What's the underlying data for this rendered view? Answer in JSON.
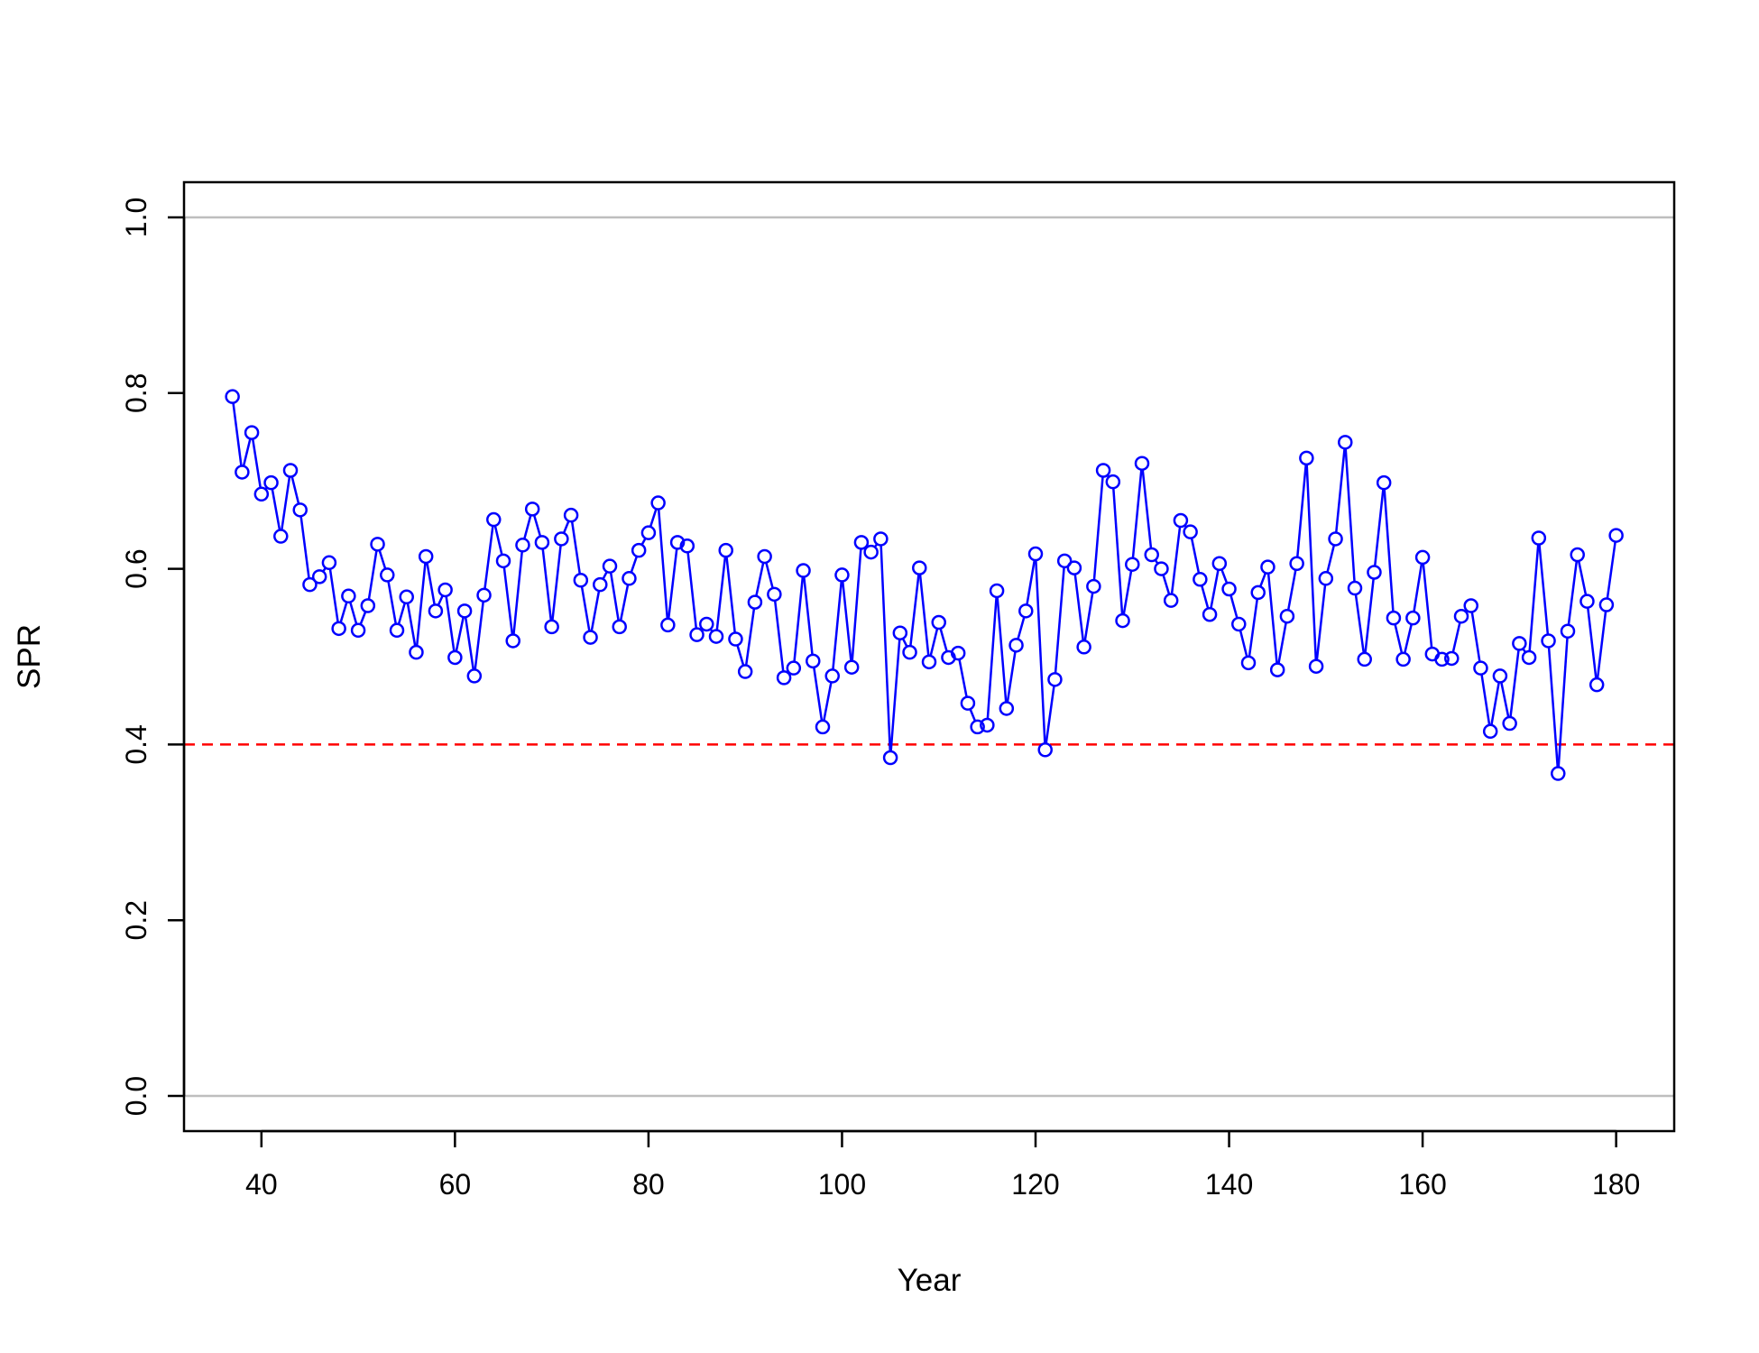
{
  "chart_data": {
    "type": "line",
    "title": "",
    "xlabel": "Year",
    "ylabel": "SPR",
    "xlim": [
      32,
      186
    ],
    "ylim": [
      -0.04,
      1.04
    ],
    "x_ticks": [
      40,
      60,
      80,
      100,
      120,
      140,
      160,
      180
    ],
    "x_tick_labels": [
      "40",
      "60",
      "80",
      "100",
      "120",
      "140",
      "160",
      "180"
    ],
    "y_ticks": [
      0.0,
      0.2,
      0.4,
      0.6,
      0.8,
      1.0
    ],
    "y_tick_labels": [
      "0.0",
      "0.2",
      "0.4",
      "0.6",
      "0.8",
      "1.0"
    ],
    "grid": false,
    "legend": "none",
    "reference_lines": [
      {
        "y": 1.0,
        "color": "#bebebe",
        "style": "solid"
      },
      {
        "y": 0.0,
        "color": "#bebebe",
        "style": "solid"
      },
      {
        "y": 0.4,
        "color": "#ff0000",
        "style": "dashed"
      }
    ],
    "series": [
      {
        "color": "#0000ff",
        "marker": "open-circle",
        "x_start": 37,
        "x_step": 1,
        "values": [
          0.796,
          0.71,
          0.755,
          0.685,
          0.698,
          0.637,
          0.712,
          0.667,
          0.582,
          0.591,
          0.607,
          0.532,
          0.569,
          0.53,
          0.558,
          0.628,
          0.593,
          0.53,
          0.568,
          0.505,
          0.614,
          0.552,
          0.576,
          0.499,
          0.552,
          0.478,
          0.57,
          0.656,
          0.609,
          0.518,
          0.627,
          0.668,
          0.63,
          0.534,
          0.634,
          0.661,
          0.587,
          0.522,
          0.582,
          0.603,
          0.534,
          0.589,
          0.621,
          0.641,
          0.675,
          0.536,
          0.63,
          0.626,
          0.525,
          0.537,
          0.523,
          0.621,
          0.52,
          0.483,
          0.562,
          0.614,
          0.571,
          0.476,
          0.487,
          0.598,
          0.495,
          0.42,
          0.478,
          0.593,
          0.488,
          0.63,
          0.619,
          0.634,
          0.385,
          0.527,
          0.505,
          0.601,
          0.494,
          0.539,
          0.499,
          0.504,
          0.447,
          0.42,
          0.422,
          0.575,
          0.441,
          0.513,
          0.552,
          0.617,
          0.394,
          0.474,
          0.609,
          0.601,
          0.511,
          0.58,
          0.712,
          0.699,
          0.541,
          0.605,
          0.72,
          0.616,
          0.6,
          0.564,
          0.655,
          0.642,
          0.588,
          0.548,
          0.606,
          0.577,
          0.537,
          0.493,
          0.573,
          0.602,
          0.485,
          0.546,
          0.606,
          0.726,
          0.489,
          0.589,
          0.634,
          0.744,
          0.578,
          0.497,
          0.596,
          0.698,
          0.544,
          0.497,
          0.544,
          0.613,
          0.503,
          0.497,
          0.498,
          0.546,
          0.558,
          0.487,
          0.415,
          0.478,
          0.424,
          0.515,
          0.499,
          0.635,
          0.518,
          0.367,
          0.529,
          0.616,
          0.563,
          0.468,
          0.559,
          0.638
        ]
      }
    ]
  }
}
